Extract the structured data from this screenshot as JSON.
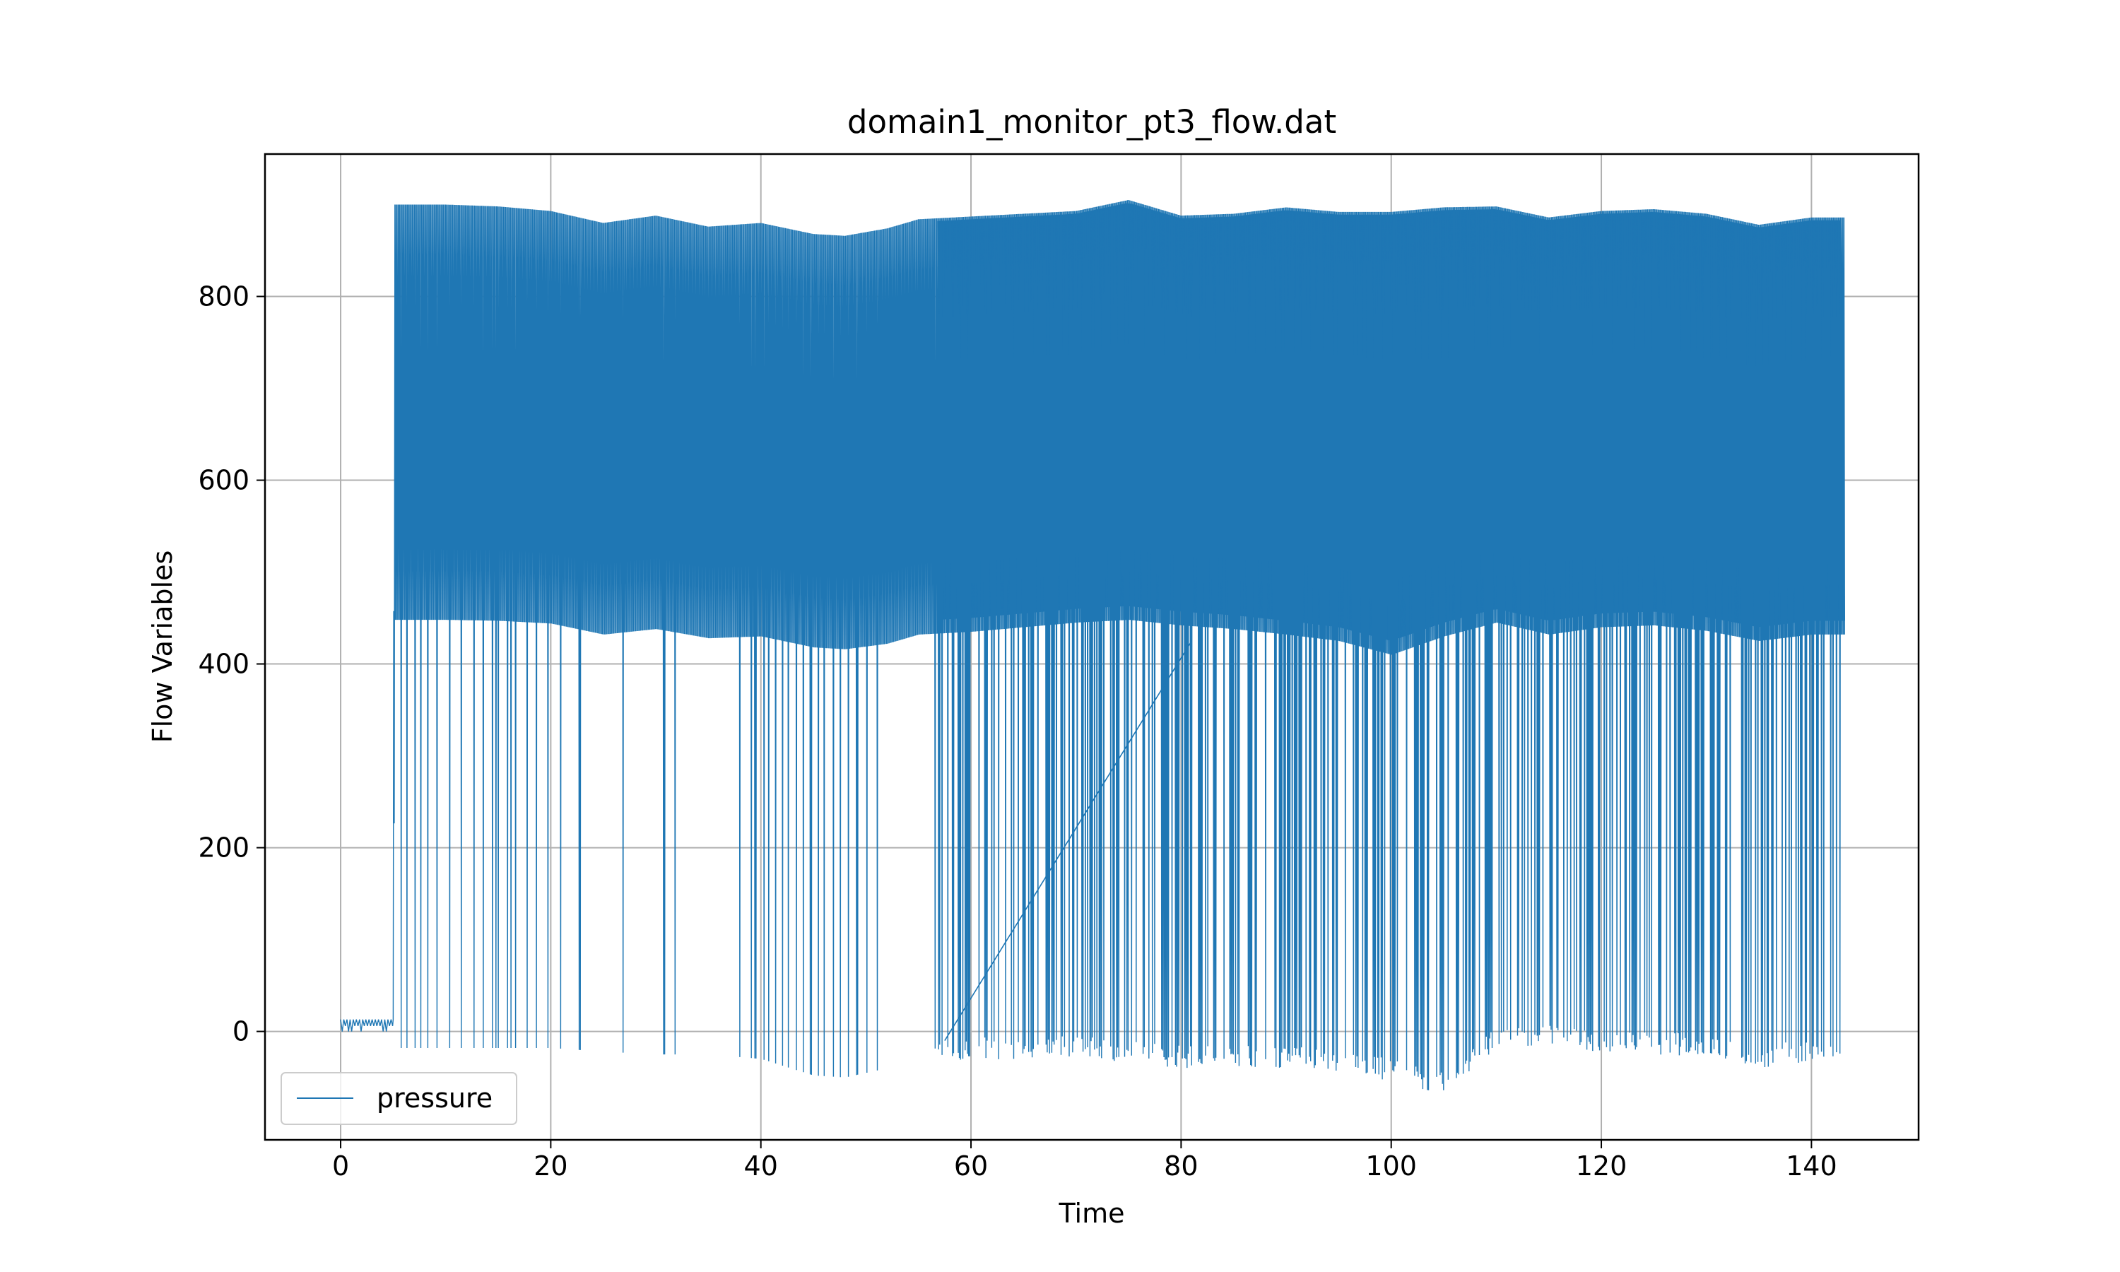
{
  "chart_data": {
    "type": "line",
    "title": "domain1_monitor_pt3_flow.dat",
    "xlabel": "Time",
    "ylabel": "Flow Variables",
    "xlim": [
      -7.2,
      150.2
    ],
    "ylim": [
      -118,
      955
    ],
    "x_ticks": [
      0,
      20,
      40,
      60,
      80,
      100,
      120,
      140
    ],
    "y_ticks": [
      0,
      200,
      400,
      600,
      800
    ],
    "x_tick_labels": [
      "0",
      "20",
      "40",
      "60",
      "80",
      "100",
      "120",
      "140"
    ],
    "y_tick_labels": [
      "0",
      "200",
      "400",
      "600",
      "800"
    ],
    "grid": true,
    "legend": {
      "position": "lower-left",
      "entries": [
        "pressure"
      ]
    },
    "series": [
      {
        "name": "pressure",
        "color": "#1f77b4",
        "x_range": [
          0,
          143.2
        ],
        "pattern": "rapid oscillation between a lower and upper envelope; occasional deep drops to near zero or below",
        "envelope_x": [
          0,
          5,
          5.1,
          10,
          15,
          20,
          25,
          30,
          35,
          40,
          45,
          48,
          52,
          55,
          60,
          65,
          70,
          75,
          80,
          85,
          90,
          95,
          100,
          105,
          110,
          115,
          120,
          125,
          130,
          135,
          140,
          143.2
        ],
        "envelope_upper": [
          15,
          15,
          900,
          900,
          898,
          893,
          880,
          888,
          876,
          880,
          868,
          866,
          874,
          884,
          887,
          890,
          893,
          905,
          888,
          890,
          897,
          892,
          892,
          897,
          898,
          886,
          893,
          895,
          890,
          878,
          886,
          886
        ],
        "envelope_mid": [
          5,
          5,
          448,
          448,
          447,
          444,
          432,
          438,
          428,
          430,
          418,
          416,
          422,
          432,
          435,
          440,
          445,
          448,
          442,
          438,
          432,
          425,
          410,
          430,
          445,
          432,
          440,
          442,
          436,
          425,
          432,
          432
        ],
        "envelope_lower": [
          0,
          0,
          -18,
          -18,
          -18,
          -18,
          -22,
          -25,
          -25,
          -30,
          -48,
          -50,
          -40,
          -32,
          -32,
          -30,
          -30,
          -35,
          -40,
          -38,
          -40,
          -45,
          -55,
          -70,
          -20,
          -18,
          -22,
          -25,
          -28,
          -40,
          -32,
          -32
        ],
        "dense_region_start": 56.5,
        "sparse_drops_x": [
          5.7,
          6.3,
          7.0,
          7.6,
          8.2,
          9.1,
          10.3,
          11.4,
          12.6,
          13.5,
          14.9,
          15.8,
          16.6,
          17.7,
          18.6,
          19.7,
          20.9,
          22.7,
          31.8,
          39.0,
          39.5,
          40.2,
          40.7,
          41.3,
          42.0,
          42.6,
          43.3,
          44.0,
          44.7,
          45.4,
          46.0,
          46.8,
          47.5,
          48.3,
          49.1
        ],
        "ramp_segment": {
          "x": [
            57.5,
            81
          ],
          "y": [
            -10,
            425
          ]
        }
      }
    ]
  }
}
